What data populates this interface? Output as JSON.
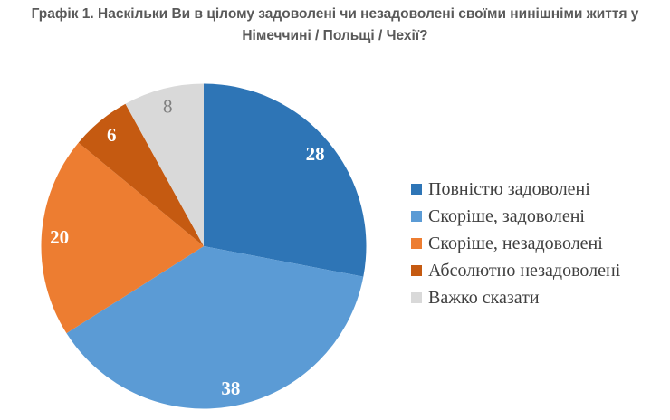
{
  "header": {
    "title_line1": "Графік 1. Наскільки Ви в цілому задоволені чи незадоволені своїми нинішніми життя у",
    "title_line2": "Німеччині / Польщі / Чехії?",
    "title_color": "#595959"
  },
  "chart_data": {
    "type": "pie",
    "title": "Графік 1. Наскільки Ви в цілому задоволені чи незадоволені своїми нинішніми життя у Німеччині / Польщі / Чехії?",
    "categories": [
      "Повністю задоволені",
      "Скоріше, задоволені",
      "Скоріше, незадоволені",
      "Абсолютно незадоволені",
      "Важко сказати"
    ],
    "values": [
      28,
      38,
      20,
      6,
      8
    ],
    "colors": [
      "#2E75B6",
      "#5B9BD5",
      "#ED7D31",
      "#C55A11",
      "#D9D9D9"
    ],
    "data_label_colors": [
      "#FFFFFF",
      "#FFFFFF",
      "#FFFFFF",
      "#FFFFFF",
      "#7F7F7F"
    ],
    "data_label_weights": [
      "bold",
      "bold",
      "bold",
      "bold",
      "normal"
    ],
    "start_angle_deg": 0,
    "direction": "clockwise",
    "legend_position": "right",
    "legend_text_color": "#3F3F3F"
  }
}
